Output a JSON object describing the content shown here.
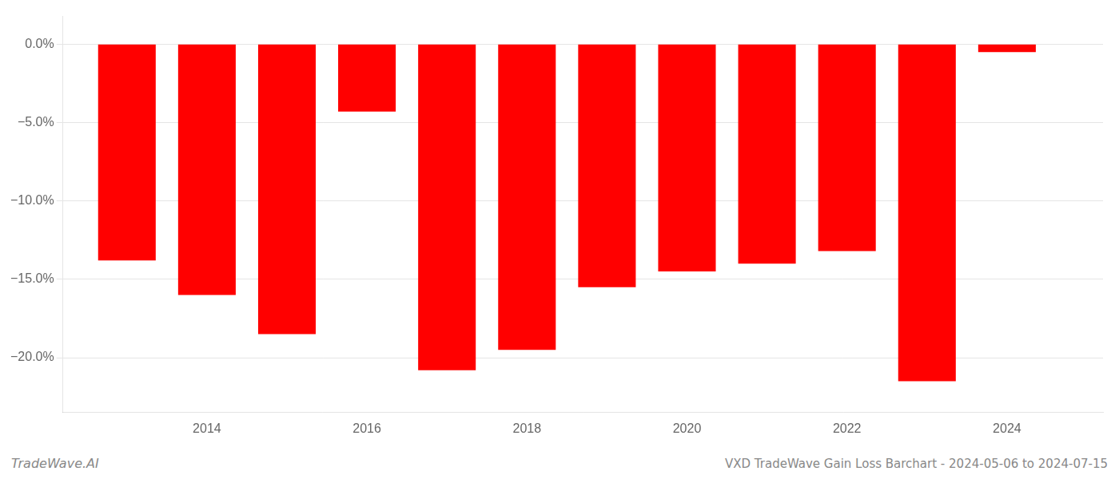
{
  "chart_data": {
    "type": "bar",
    "x": [
      2013,
      2014,
      2015,
      2016,
      2017,
      2018,
      2019,
      2020,
      2021,
      2022,
      2023,
      2024
    ],
    "values": [
      -13.8,
      -16.0,
      -18.5,
      -4.3,
      -20.8,
      -19.5,
      -15.5,
      -14.5,
      -14.0,
      -13.2,
      -21.5,
      -0.5
    ],
    "color": "#ff0000",
    "xlim": [
      2012.2,
      2025.2
    ],
    "xticks": [
      2014,
      2016,
      2018,
      2020,
      2022,
      2024
    ],
    "ylim": [
      -23.5,
      1.8
    ],
    "yticks": [
      {
        "value": 0.0,
        "label": "0.0%"
      },
      {
        "value": -5.0,
        "label": "−5.0%"
      },
      {
        "value": -10.0,
        "label": "−10.0%"
      },
      {
        "value": -15.0,
        "label": "−15.0%"
      },
      {
        "value": -20.0,
        "label": "−20.0%"
      }
    ],
    "grid": true,
    "annotations": [
      "TradeWave.AI",
      "VXD TradeWave Gain Loss Barchart - 2024-05-06 to 2024-07-15"
    ]
  }
}
